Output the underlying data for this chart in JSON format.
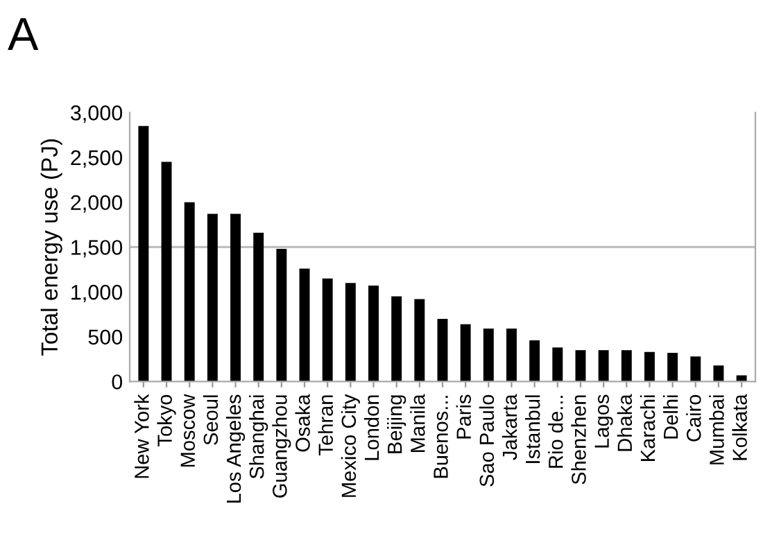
{
  "chart_data": {
    "type": "bar",
    "title": "A",
    "ylabel": "Total energy use (PJ)",
    "categories": [
      "New York",
      "Tokyo",
      "Moscow",
      "Seoul",
      "Los Angeles",
      "Shanghai",
      "Guangzhou",
      "Osaka",
      "Tehran",
      "Mexico City",
      "London",
      "Beijing",
      "Manila",
      "Buenos...",
      "Paris",
      "Sao Paulo",
      "Jakarta",
      "Istanbul",
      "Rio de...",
      "Shenzhen",
      "Lagos",
      "Dhaka",
      "Karachi",
      "Delhi",
      "Cairo",
      "Mumbai",
      "Kolkata"
    ],
    "values": [
      2850,
      2450,
      2000,
      1870,
      1870,
      1660,
      1480,
      1260,
      1150,
      1100,
      1070,
      950,
      920,
      700,
      640,
      590,
      590,
      460,
      380,
      350,
      350,
      350,
      330,
      320,
      280,
      180,
      70
    ],
    "color": "#000000",
    "ylim": [
      0,
      3000
    ],
    "yticks": [
      0,
      {
        "value": 500,
        "label": "500"
      },
      {
        "value": 1000,
        "label": "1,000"
      },
      {
        "value": 1500,
        "label": "1,500"
      },
      {
        "value": 2000,
        "label": "2,000"
      },
      {
        "value": 2500,
        "label": "2,500"
      },
      {
        "value": 3000,
        "label": "3,000"
      }
    ],
    "ref_lines": [
      {
        "axis": "y",
        "value": 1500,
        "color": "#bfbfbf"
      }
    ],
    "grid": false,
    "legend": false
  }
}
